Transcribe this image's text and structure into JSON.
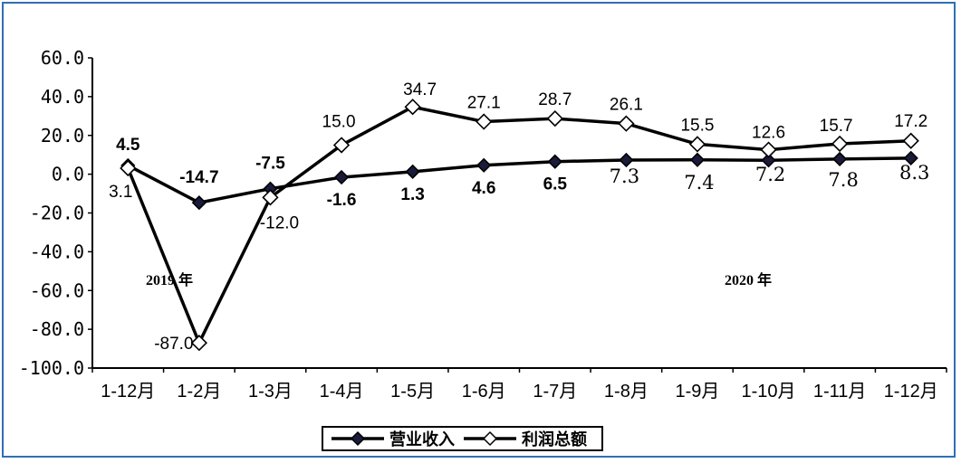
{
  "chart_data": {
    "type": "line",
    "categories": [
      "1-12月",
      "1-2月",
      "1-3月",
      "1-4月",
      "1-5月",
      "1-6月",
      "1-7月",
      "1-8月",
      "1-9月",
      "1-10月",
      "1-11月",
      "1-12月"
    ],
    "series": [
      {
        "name": "营业收入",
        "values": [
          4.5,
          -14.7,
          -7.5,
          -1.6,
          1.3,
          4.6,
          6.5,
          7.3,
          7.4,
          7.2,
          7.8,
          8.3
        ],
        "labels": [
          "4.5",
          "-14.7",
          "-7.5",
          "-1.6",
          "1.3",
          "4.6",
          "6.5",
          "7.3",
          "7.4",
          "7.2",
          "7.8",
          "8.3"
        ],
        "marker": "filled-diamond",
        "color": "#000000"
      },
      {
        "name": "利润总额",
        "values": [
          3.1,
          -87.0,
          -12.0,
          15.0,
          34.7,
          27.1,
          28.7,
          26.1,
          15.5,
          12.6,
          15.7,
          17.2
        ],
        "labels": [
          "3.1",
          "-87.0",
          "-12.0",
          "15.0",
          "34.7",
          "27.1",
          "28.7",
          "26.1",
          "15.5",
          "12.6",
          "15.7",
          "17.2"
        ],
        "marker": "hollow-diamond",
        "color": "#000000"
      }
    ],
    "yticks": [
      "60.0",
      "40.0",
      "20.0",
      "0.0",
      "-20.0",
      "-40.0",
      "-60.0",
      "-80.0",
      "-100.0"
    ],
    "ytick_values": [
      60,
      40,
      20,
      0,
      -20,
      -40,
      -60,
      -80,
      -100
    ],
    "ylim": [
      -100,
      60
    ],
    "annotations": [
      "2019 年",
      "2020 年"
    ],
    "legend_position": "bottom",
    "grid": false,
    "frame_color": "#2f6fb4"
  }
}
